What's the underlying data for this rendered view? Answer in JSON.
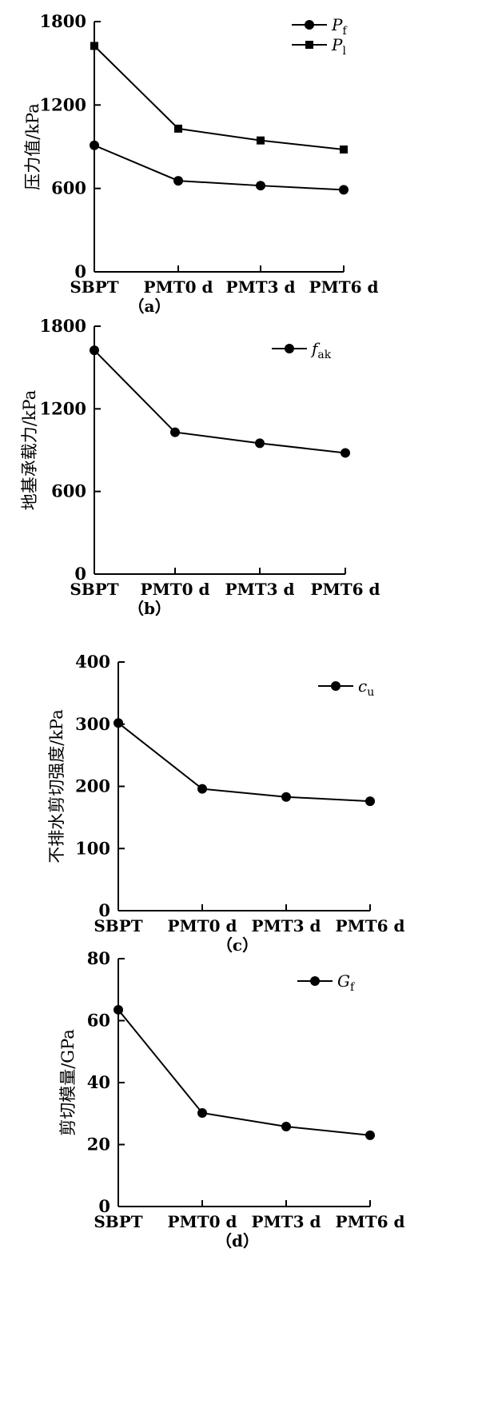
{
  "chart_data": [
    {
      "type": "line",
      "panel_label": "（a）",
      "ylabel": "压力值/kPa",
      "categories": [
        "SBPT",
        "PMT0 d",
        "PMT3 d",
        "PMT6 d"
      ],
      "ylim": [
        0,
        1800
      ],
      "yticks": [
        "0",
        "600",
        "1200",
        "1800"
      ],
      "legend_position": "top-right",
      "series": [
        {
          "name": "Pf",
          "symbol": "P",
          "subscript": "f",
          "marker": "circle",
          "values": [
            910,
            655,
            620,
            590
          ]
        },
        {
          "name": "Pl",
          "symbol": "P",
          "subscript": "l",
          "marker": "square",
          "values": [
            1625,
            1030,
            945,
            880
          ]
        }
      ]
    },
    {
      "type": "line",
      "panel_label": "（b）",
      "ylabel": "地基承载力/kPa",
      "categories": [
        "SBPT",
        "PMT0 d",
        "PMT3 d",
        "PMT6 d"
      ],
      "ylim": [
        0,
        1800
      ],
      "yticks": [
        "0",
        "600",
        "1200",
        "1800"
      ],
      "legend_position": "top-right",
      "series": [
        {
          "name": "fak",
          "symbol": "f",
          "subscript": "ak",
          "marker": "circle",
          "values": [
            1625,
            1030,
            950,
            880
          ]
        }
      ]
    },
    {
      "type": "line",
      "panel_label": "（c）",
      "ylabel": "不排水剪切强度/kPa",
      "categories": [
        "SBPT",
        "PMT0 d",
        "PMT3 d",
        "PMT6 d"
      ],
      "ylim": [
        0,
        400
      ],
      "yticks": [
        "0",
        "100",
        "200",
        "300",
        "400"
      ],
      "legend_position": "top-right",
      "series": [
        {
          "name": "cu",
          "symbol": "c",
          "subscript": "u",
          "marker": "circle",
          "values": [
            302,
            196,
            183,
            176
          ]
        }
      ]
    },
    {
      "type": "line",
      "panel_label": "（d）",
      "ylabel": "剪切模量/GPa",
      "categories": [
        "SBPT",
        "PMT0 d",
        "PMT3 d",
        "PMT6 d"
      ],
      "ylim": [
        0,
        80
      ],
      "yticks": [
        "0",
        "20",
        "40",
        "60",
        "80"
      ],
      "legend_position": "top-right",
      "series": [
        {
          "name": "Gf",
          "symbol": "G",
          "subscript": "f",
          "marker": "circle",
          "values": [
            63.5,
            30.2,
            25.8,
            23.0
          ]
        }
      ]
    }
  ]
}
